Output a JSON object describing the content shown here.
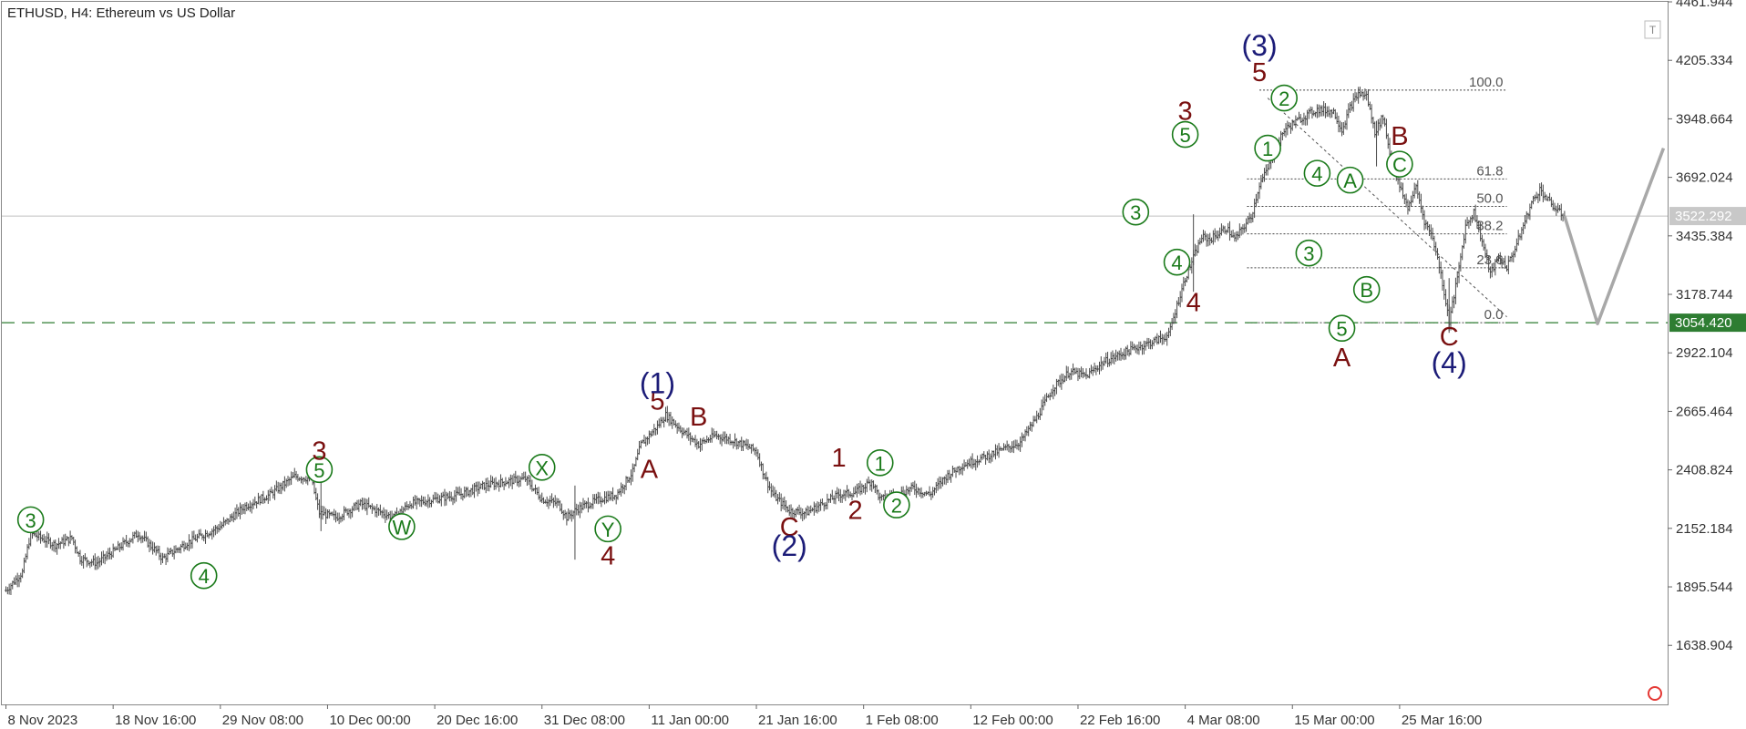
{
  "chart_data": {
    "type": "candlestick",
    "title": "ETHUSD, H4:  Ethereum vs US Dollar",
    "ylim": [
      1380,
      4462
    ],
    "y_ticks": [
      "4461.944",
      "4205.334",
      "3948.664",
      "3692.024",
      "3435.384",
      "3178.744",
      "2922.104",
      "2665.464",
      "2408.824",
      "2152.184",
      "1895.544",
      "1638.904"
    ],
    "x_ticks": [
      "8 Nov 2023",
      "18 Nov 16:00",
      "29 Nov 08:00",
      "10 Dec 00:00",
      "20 Dec 16:00",
      "31 Dec 08:00",
      "11 Jan 00:00",
      "21 Jan 16:00",
      "1 Feb 08:00",
      "12 Feb 00:00",
      "22 Feb 16:00",
      "4 Mar 08:00",
      "15 Mar 00:00",
      "25 Mar 16:00"
    ],
    "current_price": "3522.292",
    "support_level": "3054.420",
    "support_value": 3054.42,
    "price_path": [
      [
        0,
        1880
      ],
      [
        2,
        1960
      ],
      [
        3,
        2130
      ],
      [
        6,
        2080
      ],
      [
        8,
        2110
      ],
      [
        9,
        2020
      ],
      [
        11,
        2000
      ],
      [
        13,
        2050
      ],
      [
        16,
        2130
      ],
      [
        18,
        2060
      ],
      [
        19,
        2020
      ],
      [
        22,
        2090
      ],
      [
        26,
        2160
      ],
      [
        29,
        2250
      ],
      [
        32,
        2300
      ],
      [
        35,
        2380
      ],
      [
        37,
        2370
      ],
      [
        38,
        2220
      ],
      [
        40,
        2200
      ],
      [
        43,
        2260
      ],
      [
        45,
        2230
      ],
      [
        47,
        2200
      ],
      [
        49,
        2260
      ],
      [
        52,
        2280
      ],
      [
        55,
        2300
      ],
      [
        58,
        2340
      ],
      [
        61,
        2360
      ],
      [
        63,
        2370
      ],
      [
        65,
        2280
      ],
      [
        67,
        2260
      ],
      [
        68,
        2200
      ],
      [
        69,
        2230
      ],
      [
        70,
        2250
      ],
      [
        72,
        2280
      ],
      [
        74,
        2300
      ],
      [
        75,
        2350
      ],
      [
        76,
        2400
      ],
      [
        77,
        2520
      ],
      [
        79,
        2600
      ],
      [
        80,
        2650
      ],
      [
        82,
        2580
      ],
      [
        84,
        2520
      ],
      [
        86,
        2560
      ],
      [
        88,
        2540
      ],
      [
        90,
        2510
      ],
      [
        91,
        2490
      ],
      [
        92,
        2380
      ],
      [
        93,
        2300
      ],
      [
        95,
        2230
      ],
      [
        97,
        2220
      ],
      [
        99,
        2260
      ],
      [
        101,
        2300
      ],
      [
        103,
        2310
      ],
      [
        105,
        2360
      ],
      [
        106,
        2280
      ],
      [
        108,
        2300
      ],
      [
        110,
        2330
      ],
      [
        112,
        2300
      ],
      [
        114,
        2380
      ],
      [
        116,
        2430
      ],
      [
        119,
        2470
      ],
      [
        121,
        2500
      ],
      [
        123,
        2530
      ],
      [
        125,
        2640
      ],
      [
        127,
        2770
      ],
      [
        129,
        2840
      ],
      [
        131,
        2820
      ],
      [
        133,
        2880
      ],
      [
        136,
        2930
      ],
      [
        139,
        2970
      ],
      [
        141,
        3000
      ],
      [
        142,
        3130
      ],
      [
        143,
        3250
      ],
      [
        144,
        3340
      ],
      [
        145,
        3430
      ],
      [
        146,
        3420
      ],
      [
        148,
        3470
      ],
      [
        149,
        3420
      ],
      [
        151,
        3520
      ],
      [
        152,
        3660
      ],
      [
        153,
        3730
      ],
      [
        154,
        3820
      ],
      [
        155,
        3900
      ],
      [
        157,
        3950
      ],
      [
        159,
        3990
      ],
      [
        161,
        3980
      ],
      [
        162,
        3900
      ],
      [
        163,
        4000
      ],
      [
        164,
        4060
      ],
      [
        165,
        4050
      ],
      [
        166,
        3890
      ],
      [
        167,
        3960
      ],
      [
        168,
        3760
      ],
      [
        169,
        3650
      ],
      [
        170,
        3560
      ],
      [
        171,
        3650
      ],
      [
        172,
        3500
      ],
      [
        173,
        3430
      ],
      [
        174,
        3270
      ],
      [
        175,
        3060
      ],
      [
        176,
        3250
      ],
      [
        177,
        3480
      ],
      [
        178,
        3540
      ],
      [
        179,
        3410
      ],
      [
        180,
        3270
      ],
      [
        181,
        3340
      ],
      [
        182,
        3300
      ],
      [
        183,
        3380
      ],
      [
        184,
        3480
      ],
      [
        185,
        3580
      ],
      [
        186,
        3640
      ],
      [
        187,
        3590
      ],
      [
        188,
        3550
      ],
      [
        189,
        3520
      ]
    ],
    "forecast_path": [
      [
        189,
        3522
      ],
      [
        193,
        3050
      ],
      [
        201,
        3820
      ]
    ],
    "fibonacci": {
      "anchor_high": 4075,
      "anchor_low": 3054.42,
      "levels": [
        {
          "label": "100.0",
          "ratio": 1.0
        },
        {
          "label": "61.8",
          "ratio": 0.618
        },
        {
          "label": "50.0",
          "ratio": 0.5
        },
        {
          "label": "38.2",
          "ratio": 0.382
        },
        {
          "label": "23.6",
          "ratio": 0.236
        },
        {
          "label": "0.0",
          "ratio": 0.0
        }
      ]
    },
    "wave_labels": [
      {
        "text": "3",
        "t": 3,
        "price": 2190,
        "style": "circle-green"
      },
      {
        "text": "4",
        "t": 24,
        "price": 1945,
        "style": "circle-green"
      },
      {
        "text": "5",
        "t": 38,
        "price": 2410,
        "style": "circle-green"
      },
      {
        "text": "3",
        "t": 38,
        "price": 2490,
        "style": "dark-red"
      },
      {
        "text": "W",
        "t": 48,
        "price": 2160,
        "style": "circle-green"
      },
      {
        "text": "X",
        "t": 65,
        "price": 2420,
        "style": "circle-green"
      },
      {
        "text": "Y",
        "t": 73,
        "price": 2150,
        "style": "circle-green"
      },
      {
        "text": "4",
        "t": 73,
        "price": 2030,
        "style": "dark-red"
      },
      {
        "text": "A",
        "t": 78,
        "price": 2410,
        "style": "dark-red"
      },
      {
        "text": "5",
        "t": 79,
        "price": 2710,
        "style": "dark-red"
      },
      {
        "text": "(1)",
        "t": 79,
        "price": 2790,
        "style": "navy"
      },
      {
        "text": "B",
        "t": 84,
        "price": 2640,
        "style": "dark-red"
      },
      {
        "text": "C",
        "t": 95,
        "price": 2155,
        "style": "dark-red"
      },
      {
        "text": "(2)",
        "t": 95,
        "price": 2075,
        "style": "navy"
      },
      {
        "text": "1",
        "t": 101,
        "price": 2460,
        "style": "dark-red"
      },
      {
        "text": "2",
        "t": 103,
        "price": 2230,
        "style": "dark-red"
      },
      {
        "text": "1",
        "t": 106,
        "price": 2440,
        "style": "circle-green"
      },
      {
        "text": "2",
        "t": 108,
        "price": 2255,
        "style": "circle-green"
      },
      {
        "text": "3",
        "t": 137,
        "price": 3540,
        "style": "circle-green"
      },
      {
        "text": "4",
        "t": 142,
        "price": 3320,
        "style": "circle-green"
      },
      {
        "text": "5",
        "t": 143,
        "price": 3880,
        "style": "circle-green"
      },
      {
        "text": "3",
        "t": 143,
        "price": 3980,
        "style": "dark-red"
      },
      {
        "text": "4",
        "t": 144,
        "price": 3140,
        "style": "dark-red"
      },
      {
        "text": "(3)",
        "t": 152,
        "price": 4270,
        "style": "navy"
      },
      {
        "text": "5",
        "t": 152,
        "price": 4150,
        "style": "dark-red"
      },
      {
        "text": "2",
        "t": 155,
        "price": 4040,
        "style": "circle-green"
      },
      {
        "text": "1",
        "t": 153,
        "price": 3820,
        "style": "circle-green"
      },
      {
        "text": "4",
        "t": 159,
        "price": 3710,
        "style": "circle-green"
      },
      {
        "text": "3",
        "t": 158,
        "price": 3360,
        "style": "circle-green"
      },
      {
        "text": "A",
        "t": 163,
        "price": 3680,
        "style": "circle-green"
      },
      {
        "text": "B",
        "t": 165,
        "price": 3200,
        "style": "circle-green"
      },
      {
        "text": "5",
        "t": 162,
        "price": 3030,
        "style": "circle-green"
      },
      {
        "text": "A",
        "t": 162,
        "price": 2900,
        "style": "dark-red"
      },
      {
        "text": "C",
        "t": 169,
        "price": 3750,
        "style": "circle-green"
      },
      {
        "text": "B",
        "t": 169,
        "price": 3870,
        "style": "dark-red"
      },
      {
        "text": "C",
        "t": 175,
        "price": 2990,
        "style": "dark-red"
      },
      {
        "text": "(4)",
        "t": 175,
        "price": 2880,
        "style": "navy"
      }
    ],
    "colors": {
      "candles": "#4a4a4a",
      "green": "#1a7a1a",
      "dark_red": "#7a1010",
      "navy": "#1c1c78",
      "support_line": "#2e7d32",
      "forecast": "#a8a8a8",
      "current_price_bg": "#c8c8c8"
    }
  }
}
